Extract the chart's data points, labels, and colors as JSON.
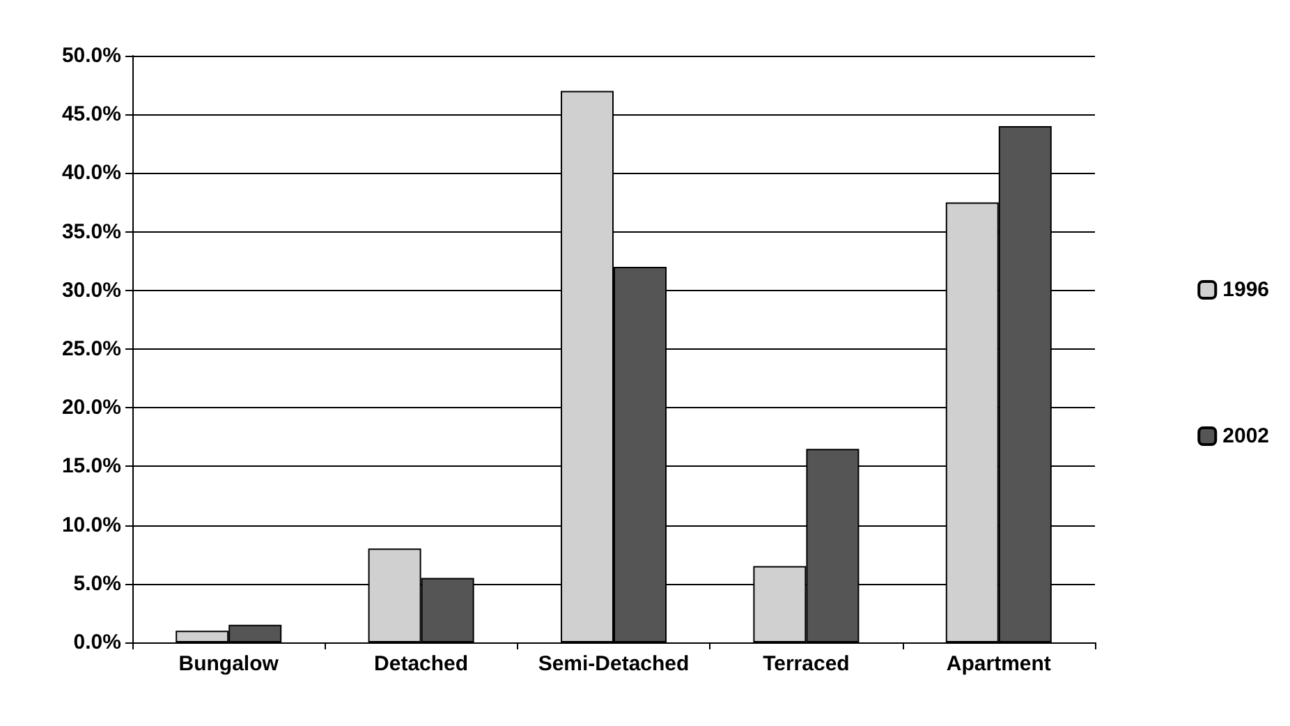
{
  "chart_data": {
    "type": "bar",
    "categories": [
      "Bungalow",
      "Detached",
      "Semi-Detached",
      "Terraced",
      "Apartment"
    ],
    "series": [
      {
        "name": "1996",
        "color": "#d0d0d0",
        "values": [
          1,
          8,
          47,
          6.5,
          37.5
        ]
      },
      {
        "name": "2002",
        "color": "#555555",
        "values": [
          1.5,
          5.5,
          32,
          16.5,
          44
        ]
      }
    ],
    "ylim": [
      0,
      50
    ],
    "yticks": [
      {
        "value": 0,
        "label": "0.0%"
      },
      {
        "value": 5,
        "label": "5.0%"
      },
      {
        "value": 10,
        "label": "10.0%"
      },
      {
        "value": 15,
        "label": "15.0%"
      },
      {
        "value": 20,
        "label": "20.0%"
      },
      {
        "value": 25,
        "label": "25.0%"
      },
      {
        "value": 30,
        "label": "30.0%"
      },
      {
        "value": 35,
        "label": "35.0%"
      },
      {
        "value": 40,
        "label": "40.0%"
      },
      {
        "value": 45,
        "label": "45.0%"
      },
      {
        "value": 50,
        "label": "50.0%"
      }
    ],
    "grid": "y",
    "legend": "right"
  }
}
